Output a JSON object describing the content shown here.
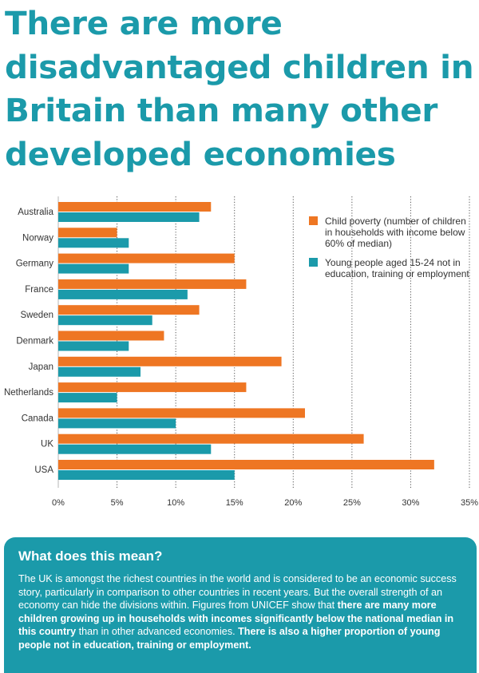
{
  "title": "There are more disadvantaged children in Britain than many other developed economies",
  "colors": {
    "accent": "#1b9aaa",
    "child_poverty": "#ee7623",
    "young_people": "#1b9aaa"
  },
  "chart_data": {
    "type": "bar",
    "orientation": "horizontal",
    "categories": [
      "Australia",
      "Norway",
      "Germany",
      "France",
      "Sweden",
      "Denmark",
      "Japan",
      "Netherlands",
      "Canada",
      "UK",
      "USA"
    ],
    "series": [
      {
        "name": "Child poverty (number of children in households with income below 60% of median)",
        "color": "#ee7623",
        "values": [
          13,
          5,
          15,
          16,
          12,
          9,
          19,
          16,
          21,
          26,
          32
        ]
      },
      {
        "name": "Young people aged 15-24 not in education, training or employment",
        "color": "#1b9aaa",
        "values": [
          12,
          6,
          6,
          11,
          8,
          6,
          7,
          5,
          10,
          13,
          15
        ]
      }
    ],
    "xlim": [
      0,
      35
    ],
    "xticks": [
      0,
      5,
      10,
      15,
      20,
      25,
      30,
      35
    ],
    "xtick_labels": [
      "0%",
      "5%",
      "10%",
      "15%",
      "20%",
      "25%",
      "30%",
      "35%"
    ],
    "grid": "dotted vertical",
    "legend": {
      "position": "right",
      "entries": [
        "Child poverty (number of children in households with income below 60% of median)",
        "Young people aged 15-24 not in education, training or employment"
      ]
    },
    "xlabel": "",
    "ylabel": ""
  },
  "legend": {
    "child_poverty": "Child poverty (number of children in households with income below 60% of median)",
    "young_people": "Young people aged 15-24 not in education, training or employment"
  },
  "info": {
    "heading": "What does this mean?",
    "body_1": "The UK is amongst the richest countries in the world and is considered to be an economic success story, particularly in comparison to other countries in recent years. But the overall strength of an economy can hide the divisions within. Figures from UNICEF show that ",
    "body_2": "there are many more children growing up in households with incomes significantly below the national median in this country",
    "body_3": " than in other advanced economies. ",
    "body_4": "There is also a higher proportion of young people not in education, training or employment."
  }
}
